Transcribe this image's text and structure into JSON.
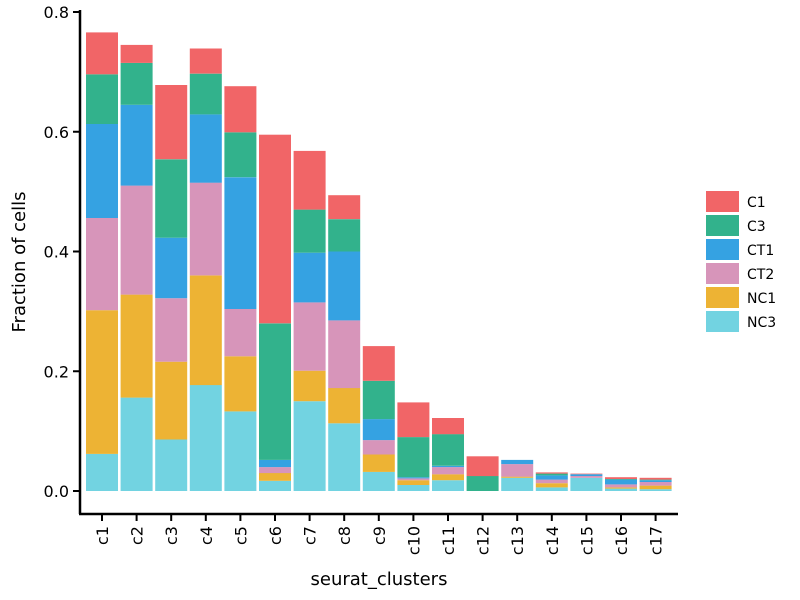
{
  "chart_data": {
    "type": "bar",
    "stacked": true,
    "xlabel": "seurat_clusters",
    "ylabel": "Fraction of cells",
    "ylim": [
      0,
      0.8
    ],
    "yticks": [
      0.0,
      0.2,
      0.4,
      0.6,
      0.8
    ],
    "ytick_labels": [
      "0.0",
      "0.2",
      "0.4",
      "0.6",
      "0.8"
    ],
    "legend_position": "right",
    "categories": [
      "c1",
      "c2",
      "c3",
      "c4",
      "c5",
      "c6",
      "c7",
      "c8",
      "c9",
      "c10",
      "c11",
      "c12",
      "c13",
      "c14",
      "c15",
      "c16",
      "c17"
    ],
    "series": [
      {
        "name": "NC3",
        "color": "#72D3E1",
        "values": [
          0.062,
          0.156,
          0.086,
          0.177,
          0.133,
          0.017,
          0.15,
          0.113,
          0.032,
          0.01,
          0.018,
          0.0,
          0.022,
          0.006,
          0.022,
          0.004,
          0.003
        ]
      },
      {
        "name": "NC1",
        "color": "#EDB334",
        "values": [
          0.24,
          0.172,
          0.13,
          0.183,
          0.092,
          0.013,
          0.051,
          0.059,
          0.029,
          0.008,
          0.01,
          0.0,
          0.002,
          0.007,
          0.0,
          0.002,
          0.006
        ]
      },
      {
        "name": "CT2",
        "color": "#D795BA",
        "values": [
          0.154,
          0.182,
          0.106,
          0.155,
          0.079,
          0.01,
          0.114,
          0.113,
          0.024,
          0.003,
          0.012,
          0.0,
          0.021,
          0.006,
          0.003,
          0.005,
          0.006
        ]
      },
      {
        "name": "CT1",
        "color": "#35A2E2",
        "values": [
          0.157,
          0.135,
          0.101,
          0.114,
          0.22,
          0.012,
          0.083,
          0.115,
          0.035,
          0.002,
          0.002,
          0.0,
          0.007,
          0.007,
          0.003,
          0.008,
          0.003
        ]
      },
      {
        "name": "C3",
        "color": "#32B28C",
        "values": [
          0.083,
          0.07,
          0.131,
          0.068,
          0.075,
          0.228,
          0.072,
          0.054,
          0.064,
          0.067,
          0.053,
          0.025,
          0.0,
          0.003,
          0.0,
          0.001,
          0.001
        ]
      },
      {
        "name": "C1",
        "color": "#F16567",
        "values": [
          0.07,
          0.03,
          0.124,
          0.042,
          0.077,
          0.315,
          0.098,
          0.04,
          0.058,
          0.058,
          0.027,
          0.033,
          0.0,
          0.002,
          0.001,
          0.003,
          0.003
        ]
      }
    ],
    "legend_order": [
      "C1",
      "C3",
      "CT1",
      "CT2",
      "NC1",
      "NC3"
    ]
  }
}
